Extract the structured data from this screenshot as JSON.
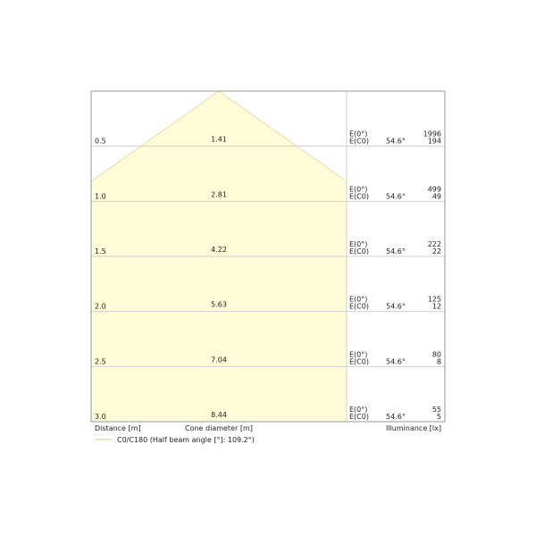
{
  "chart_data": {
    "type": "table",
    "rows": [
      {
        "distance": "0.5",
        "diameter": "1.41",
        "e0": "1996",
        "ec0": "194",
        "angle": "54.6°"
      },
      {
        "distance": "1.0",
        "diameter": "2.81",
        "e0": "499",
        "ec0": "49",
        "angle": "54.6°"
      },
      {
        "distance": "1.5",
        "diameter": "4.22",
        "e0": "222",
        "ec0": "22",
        "angle": "54.6°"
      },
      {
        "distance": "2.0",
        "diameter": "5.63",
        "e0": "125",
        "ec0": "12",
        "angle": "54.6°"
      },
      {
        "distance": "2.5",
        "diameter": "7.04",
        "e0": "80",
        "ec0": "8",
        "angle": "54.6°"
      },
      {
        "distance": "3.0",
        "diameter": "8.44",
        "e0": "55",
        "ec0": "5",
        "angle": "54.6°"
      }
    ],
    "e0_label": "E(0°)",
    "ec0_label": "E(C0)",
    "xlabel_distance": "Distance [m]",
    "xlabel_diameter": "Cone diameter [m]",
    "xlabel_illuminance": "Illuminance [lx]",
    "legend": "C0/C180 (Half beam angle [°]: 109.2°)",
    "half_beam_angle": 109.2,
    "colors": {
      "fill": "#fefbd8",
      "stroke": "#f0d9a8",
      "grid": "#d0d0d0",
      "frame": "#999999"
    }
  }
}
